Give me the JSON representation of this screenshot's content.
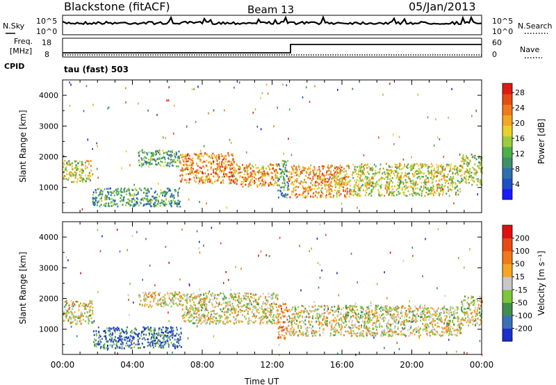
{
  "header": {
    "title": "Blackstone (fitACF)",
    "beam": "Beam 13",
    "date": "05/Jan/2013"
  },
  "strip_labels": {
    "nsky": "N.Sky",
    "nsearch": "N.Search",
    "freq": "Freq.",
    "freq_unit": "[MHz]",
    "nave": "Nave",
    "cpid": "CPID",
    "cpid_value": "tau (fast) 503"
  },
  "strip_ticks": {
    "noise_left": [
      "10^5",
      "10^0"
    ],
    "noise_right": [
      "10^5",
      "10^0"
    ],
    "freq_left": [
      "18",
      "8"
    ],
    "nave_right": [
      "60",
      "0"
    ]
  },
  "chart_data": [
    {
      "type": "heatmap",
      "name": "power",
      "ylabel": "Slant Range [km]",
      "xlabel": "",
      "x_ticks": [
        "00:00",
        "04:00",
        "08:00",
        "12:00",
        "16:00",
        "20:00",
        "00:00"
      ],
      "x_range_hours": [
        0,
        24
      ],
      "y_ticks": [
        1000,
        2000,
        3000,
        4000
      ],
      "y_range_km": [
        180,
        4500
      ],
      "colorbar": {
        "label": "Power [dB]",
        "ticks": [
          "4",
          "8",
          "12",
          "16",
          "20",
          "24",
          "28"
        ],
        "colors": [
          "#1a1aff",
          "#1f4fc8",
          "#2f6fb0",
          "#3f8f6a",
          "#4db04a",
          "#9ccc3c",
          "#e8d22a",
          "#f5a623",
          "#f07a1a",
          "#e84a14",
          "#e01a10"
        ]
      },
      "bands": [
        {
          "t0": 0.0,
          "t1": 1.7,
          "r0": 1200,
          "r1": 1900,
          "level": 0.55
        },
        {
          "t0": 1.7,
          "t1": 6.7,
          "r0": 400,
          "r1": 1000,
          "level": 0.35
        },
        {
          "t0": 4.3,
          "t1": 6.7,
          "r0": 1700,
          "r1": 2250,
          "level": 0.4
        },
        {
          "t0": 6.7,
          "t1": 9.8,
          "r0": 1150,
          "r1": 2150,
          "level": 0.75
        },
        {
          "t0": 9.8,
          "t1": 12.3,
          "r0": 1050,
          "r1": 1800,
          "level": 0.7
        },
        {
          "t0": 12.3,
          "t1": 12.9,
          "r0": 700,
          "r1": 1900,
          "level": 0.35
        },
        {
          "t0": 12.9,
          "t1": 16.5,
          "r0": 700,
          "r1": 1750,
          "level": 0.7
        },
        {
          "t0": 16.5,
          "t1": 22.8,
          "r0": 750,
          "r1": 1800,
          "level": 0.55
        },
        {
          "t0": 22.8,
          "t1": 24.0,
          "r0": 1100,
          "r1": 2100,
          "level": 0.5
        }
      ]
    },
    {
      "type": "heatmap",
      "name": "velocity",
      "ylabel": "Slant Range [km]",
      "xlabel": "Time UT",
      "x_ticks": [
        "00:00",
        "04:00",
        "08:00",
        "12:00",
        "16:00",
        "20:00",
        "00:00"
      ],
      "x_range_hours": [
        0,
        24
      ],
      "y_ticks": [
        1000,
        2000,
        3000,
        4000
      ],
      "y_range_km": [
        180,
        4500
      ],
      "colorbar": {
        "label": "Velocity [m s⁻¹]",
        "ticks": [
          "200",
          "100",
          "50",
          "15",
          "-15",
          "-50",
          "-100",
          "-200"
        ],
        "colors": [
          "#1a2fcc",
          "#3a6fb8",
          "#3f8f4a",
          "#7cc63a",
          "#c8c8c8",
          "#f5a623",
          "#f07a1a",
          "#e84a14",
          "#e01010"
        ]
      },
      "bands": [
        {
          "t0": 0.0,
          "t1": 1.7,
          "r0": 1200,
          "r1": 1950,
          "level": 0.5
        },
        {
          "t0": 1.7,
          "t1": 6.8,
          "r0": 400,
          "r1": 1100,
          "level": 0.18
        },
        {
          "t0": 4.3,
          "t1": 6.8,
          "r0": 1750,
          "r1": 2250,
          "level": 0.55
        },
        {
          "t0": 6.8,
          "t1": 12.3,
          "r0": 1200,
          "r1": 2200,
          "level": 0.5
        },
        {
          "t0": 12.3,
          "t1": 12.9,
          "r0": 700,
          "r1": 1900,
          "level": 0.7
        },
        {
          "t0": 12.9,
          "t1": 22.8,
          "r0": 800,
          "r1": 1800,
          "level": 0.5
        },
        {
          "t0": 22.8,
          "t1": 24.0,
          "r0": 1150,
          "r1": 2100,
          "level": 0.5
        }
      ]
    }
  ]
}
